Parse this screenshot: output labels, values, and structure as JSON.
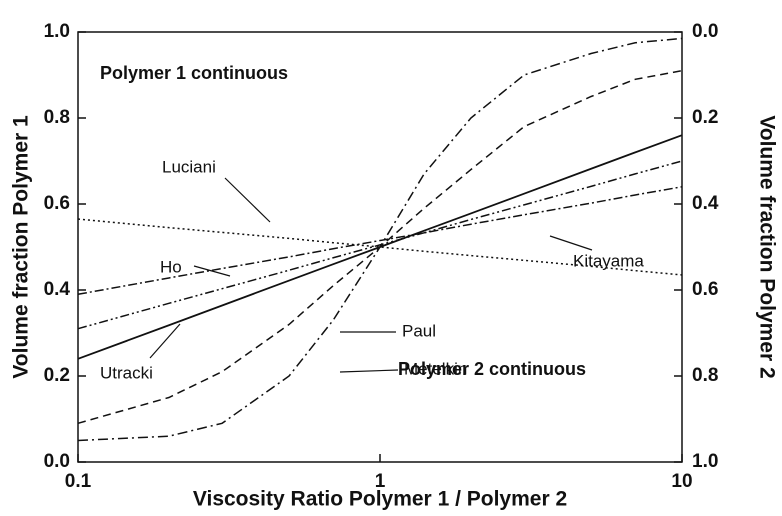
{
  "chart_data": {
    "type": "line",
    "x_label": "Viscosity Ratio Polymer 1 / Polymer 2",
    "y_label": "Volume fraction Polymer 1",
    "y2_label": "Volume fraction Polymer 2",
    "x_scale": "log",
    "x": [
      0.1,
      0.2,
      0.3,
      0.5,
      0.7,
      1,
      1.4,
      2,
      3,
      5,
      7,
      10
    ],
    "series": [
      {
        "name": "Utracki",
        "color": "#111111",
        "dash": "none",
        "values": [
          0.24,
          0.318,
          0.364,
          0.422,
          0.46,
          0.5,
          0.538,
          0.578,
          0.624,
          0.682,
          0.72,
          0.76
        ]
      },
      {
        "name": "Luciani",
        "color": "#111111",
        "dash": "2,3",
        "values": [
          0.565,
          0.545,
          0.534,
          0.52,
          0.51,
          0.5,
          0.49,
          0.48,
          0.469,
          0.455,
          0.445,
          0.435
        ]
      },
      {
        "name": "Ho",
        "color": "#111111",
        "dash": "9,3,2,3",
        "values": [
          0.39,
          0.428,
          0.45,
          0.477,
          0.496,
          0.515,
          0.533,
          0.553,
          0.575,
          0.602,
          0.621,
          0.64
        ]
      },
      {
        "name": "Kitayama",
        "color": "#111111",
        "dash": "9,3,2,3,2,3",
        "values": [
          0.31,
          0.369,
          0.403,
          0.446,
          0.475,
          0.505,
          0.533,
          0.564,
          0.598,
          0.641,
          0.67,
          0.7
        ]
      },
      {
        "name": "Paul",
        "color": "#111111",
        "dash": "8,5",
        "values": [
          0.09,
          0.15,
          0.21,
          0.32,
          0.41,
          0.5,
          0.59,
          0.68,
          0.78,
          0.85,
          0.89,
          0.91
        ]
      },
      {
        "name": "Metelkin",
        "color": "#111111",
        "dash": "10,4,2,4",
        "values": [
          0.05,
          0.06,
          0.09,
          0.2,
          0.33,
          0.5,
          0.67,
          0.8,
          0.9,
          0.95,
          0.975,
          0.985
        ]
      }
    ],
    "annotations": [
      "Polymer 1 continuous",
      "Polymer 2 continuous"
    ],
    "xlim": [
      0.1,
      10
    ],
    "xticks": [
      0.1,
      1,
      10
    ],
    "ylim": [
      0,
      1
    ],
    "yticks": [
      {
        "value": 0,
        "label": "0.0"
      },
      0.2,
      0.4,
      0.6,
      0.8,
      {
        "value": 1,
        "label": "1.0"
      }
    ],
    "y2lim": [
      1,
      0
    ],
    "y2ticks": [
      {
        "value": 0,
        "label": "0.0"
      },
      0.2,
      0.4,
      0.6,
      0.8,
      {
        "value": 1,
        "label": "1.0"
      }
    ]
  }
}
